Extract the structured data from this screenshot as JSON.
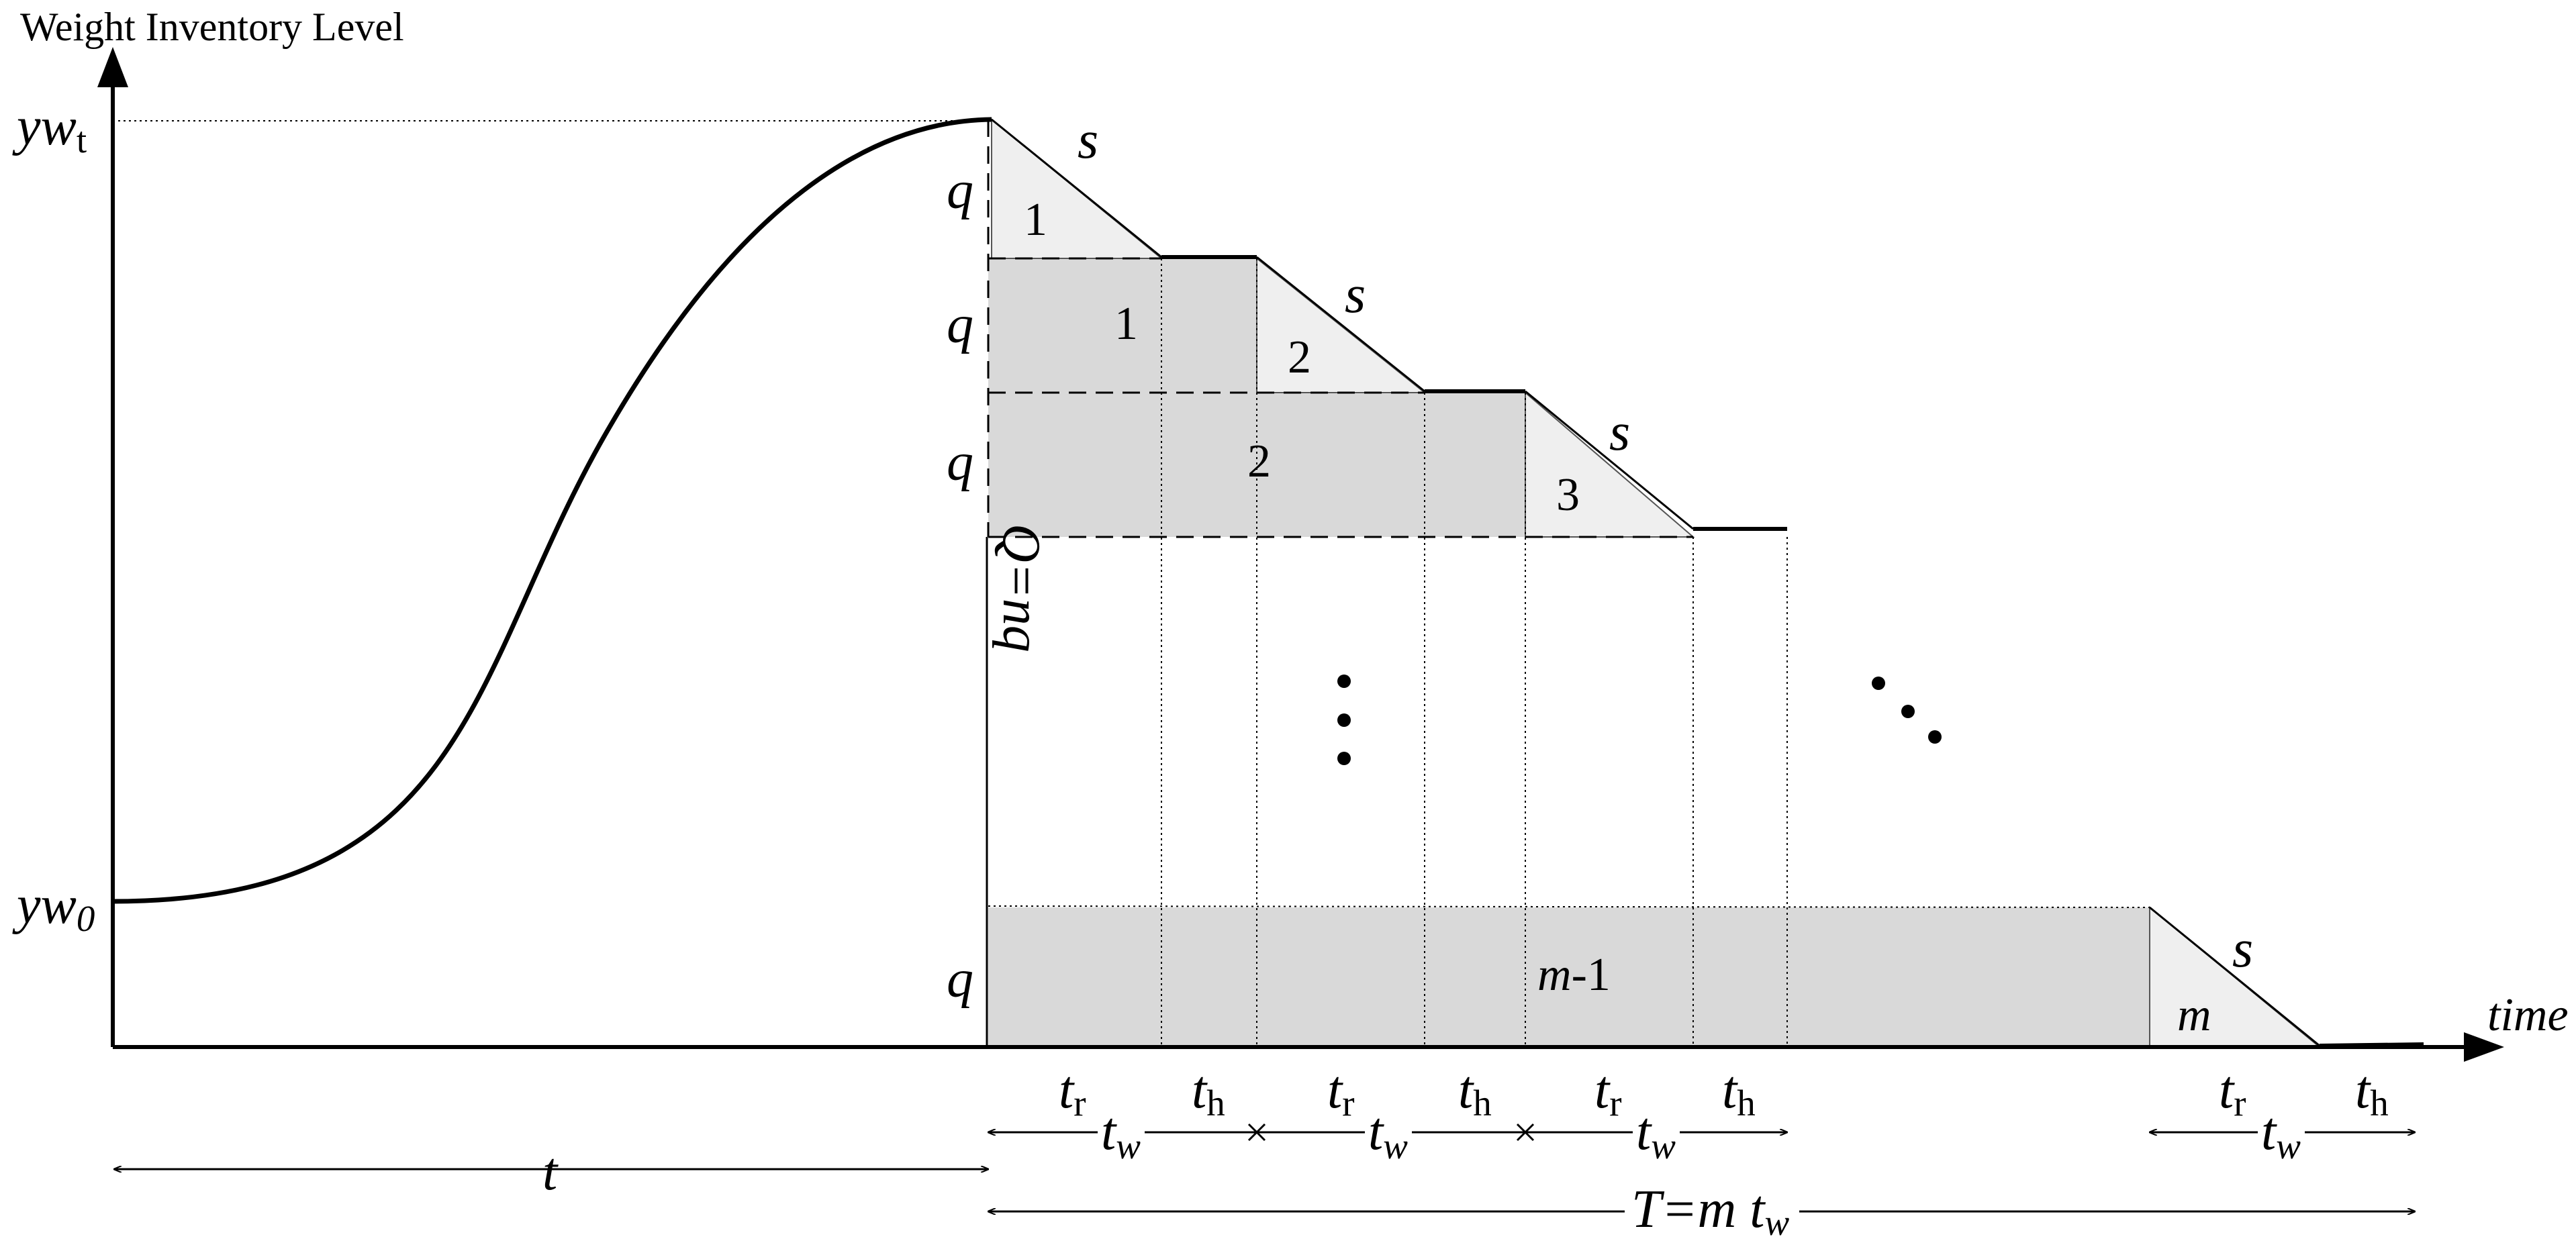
{
  "diagram": {
    "y_axis_title": "Weight Inventory Level",
    "x_axis_title": "time",
    "y_labels": {
      "yw_t_main": "yw",
      "yw_t_sub": "t",
      "yw_0_main": "yw",
      "yw_0_sub": "0"
    },
    "q_label": "q",
    "s_label": "s",
    "Q_label": "Q=nq",
    "triangle_numbers": [
      "1",
      "2",
      "3"
    ],
    "rect_numbers": [
      "1",
      "2"
    ],
    "last_rect_m": "m",
    "last_rect_rest": "-1",
    "last_triangle": "m",
    "t_r_main": "t",
    "t_r_sub": "r",
    "t_h_main": "t",
    "t_h_sub": "h",
    "t_w_main": "t",
    "t_w_sub": "w",
    "t_label": "t",
    "T_prefix": "T=m ",
    "T_tw_main": "t",
    "T_tw_sub": "w"
  }
}
